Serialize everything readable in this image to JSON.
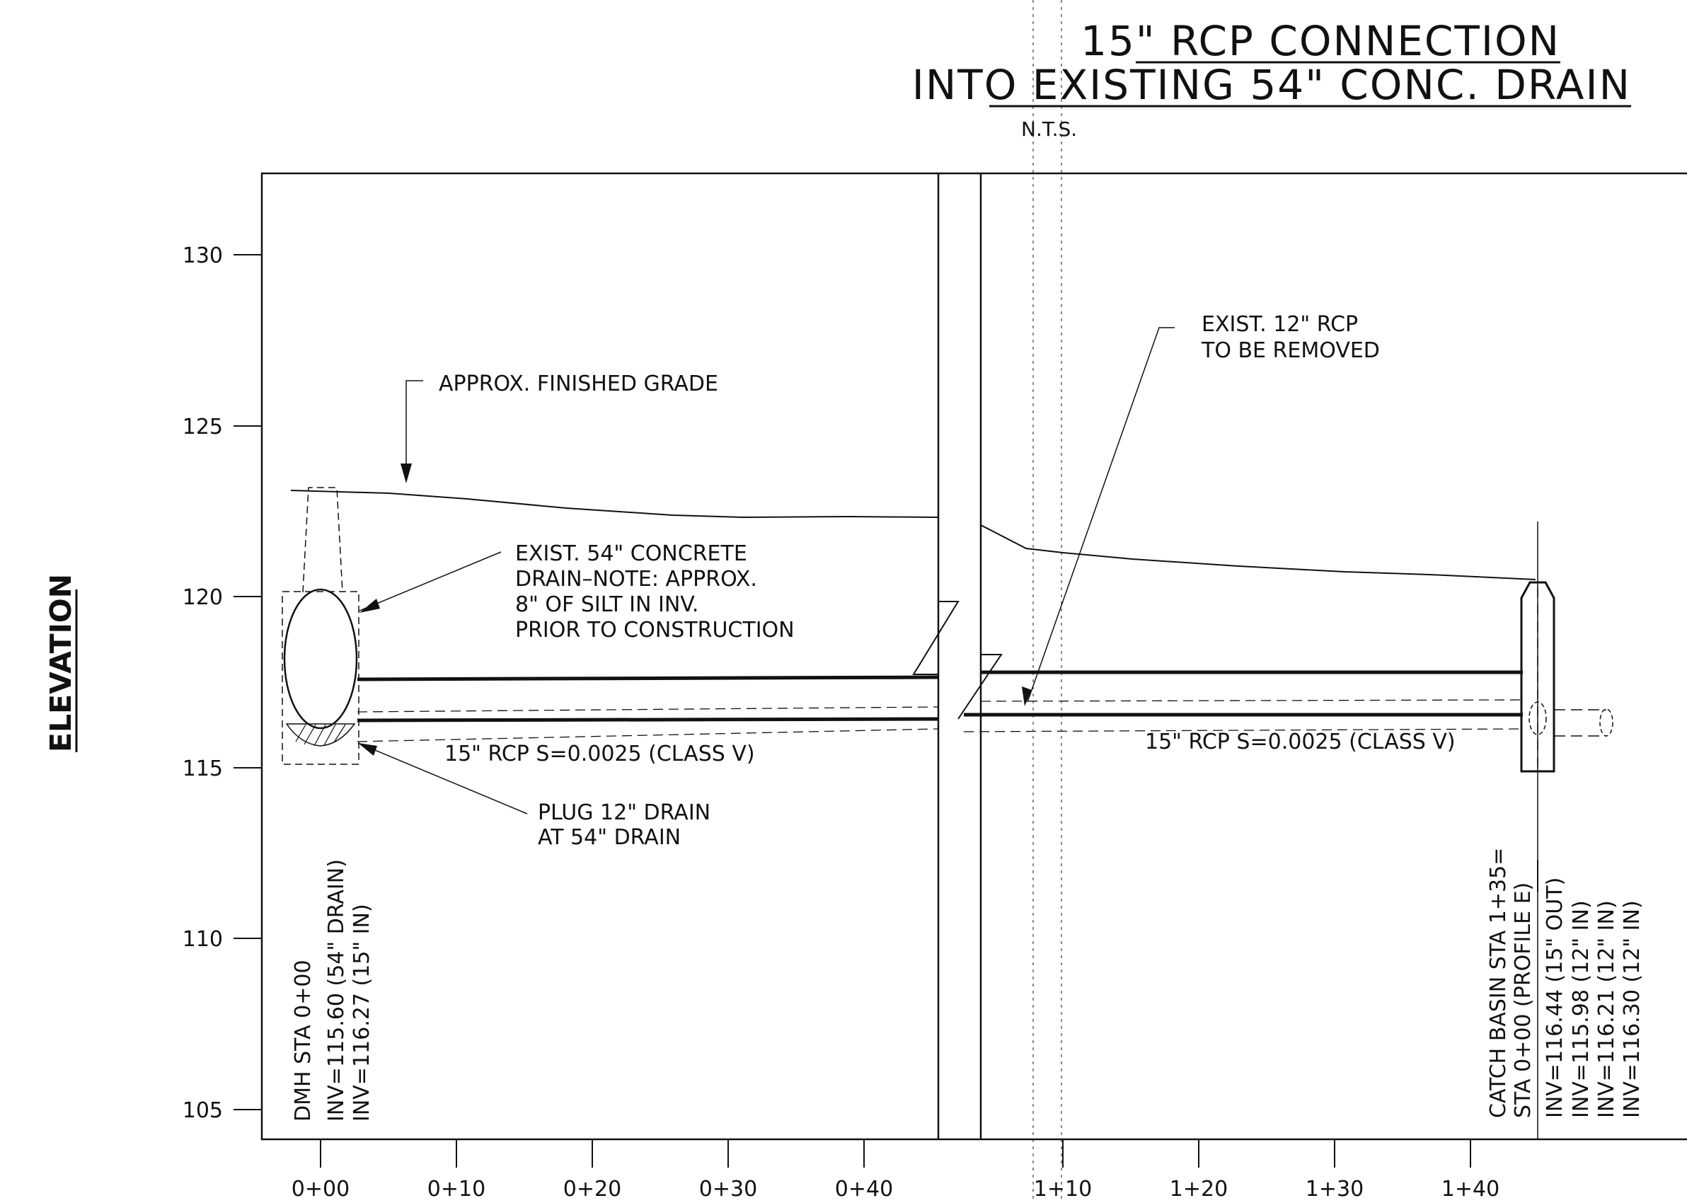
{
  "title": {
    "line1": "15\" RCP CONNECTION",
    "line2": "INTO EXISTING 54\" CONC. DRAIN",
    "scale_note": "N.T.S."
  },
  "side_label": "ELEVATION",
  "y_axis": {
    "tick_labels": [
      "130",
      "125",
      "120",
      "115",
      "110",
      "105"
    ]
  },
  "x_axis": {
    "tick_labels": [
      "0+00",
      "0+10",
      "0+20",
      "0+30",
      "0+40",
      "1+10",
      "1+20",
      "1+30",
      "1+40"
    ]
  },
  "callouts": {
    "finished_grade": "APPROX. FINISHED GRADE",
    "exist_drain": [
      "EXIST. 54\" CONCRETE",
      "DRAIN–NOTE: APPROX.",
      "8\" OF SILT IN INV.",
      "PRIOR TO CONSTRUCTION"
    ],
    "plug": [
      "PLUG 12\" DRAIN",
      "AT 54\" DRAIN"
    ],
    "remove": [
      "EXIST. 12\" RCP",
      "TO BE REMOVED"
    ],
    "pipe_left": "15\" RCP  S=0.0025 (CLASS V)",
    "pipe_right": "15\" RCP  S=0.0025 (CLASS V)"
  },
  "dmh_labels": [
    "DMH STA 0+00",
    "INV=115.60 (54\" DRAIN)",
    "INV=116.27 (15\" IN)"
  ],
  "catch_basin_labels": [
    "CATCH BASIN STA 1+35=",
    "STA 0+00 (PROFILE E)"
  ],
  "catch_basin_inverts": [
    "INV=116.44 (15\" OUT)",
    "INV=115.98 (12\" IN)",
    "INV=116.21 (12\" IN)",
    "INV=116.30 (12\" IN)"
  ]
}
